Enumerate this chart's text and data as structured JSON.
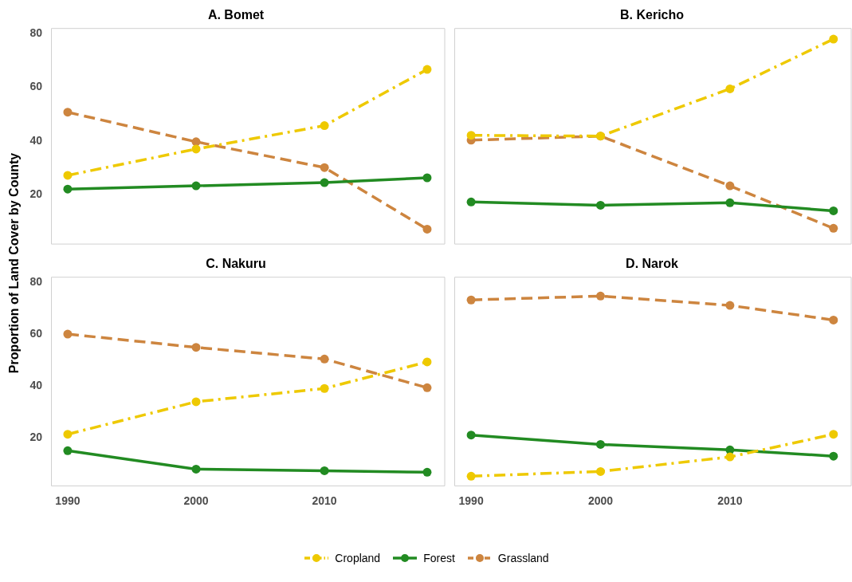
{
  "chart_data": [
    {
      "type": "line",
      "title": "A. Bomet",
      "ylabel": "Proportion of Land Cover by County",
      "x": [
        1990,
        2000,
        2010,
        2018
      ],
      "xlim": [
        1988.7,
        2019.4
      ],
      "xticks": [
        1990,
        2000,
        2010
      ],
      "ylim": [
        1.5,
        82
      ],
      "yticks": [
        20,
        40,
        60,
        80
      ],
      "tick_labels": "y",
      "grid": false,
      "legend": "bottom",
      "marker": "circle",
      "series": [
        {
          "name": "Cropland",
          "color": "#eec900",
          "line_style": "dashdot",
          "values": [
            27.2,
            37,
            45.7,
            66.6
          ]
        },
        {
          "name": "Forest",
          "color": "#228b22",
          "line_style": "solid",
          "values": [
            22.1,
            23.3,
            24.5,
            26.3
          ]
        },
        {
          "name": "Grassland",
          "color": "#cd853f",
          "line_style": "dashed",
          "values": [
            50.7,
            39.7,
            30.1,
            7.2
          ]
        }
      ]
    },
    {
      "type": "line",
      "title": "B. Kericho",
      "x": [
        1990,
        2000,
        2010,
        2018
      ],
      "xlim": [
        1988.7,
        2019.4
      ],
      "xticks": [
        1990,
        2000,
        2010
      ],
      "ylim": [
        1.5,
        82
      ],
      "yticks": [
        20,
        40,
        60,
        80
      ],
      "tick_labels": false,
      "grid": false,
      "marker": "circle",
      "series": [
        {
          "color": "#eec900",
          "line_style": "dashdot",
          "values": [
            42.1,
            41.8,
            59.4,
            77.9
          ]
        },
        {
          "color": "#228b22",
          "line_style": "solid",
          "values": [
            17.3,
            16.1,
            17,
            14
          ]
        },
        {
          "color": "#cd853f",
          "line_style": "dashed",
          "values": [
            40.3,
            41.8,
            23.3,
            7.5
          ]
        }
      ]
    },
    {
      "type": "line",
      "title": "C. Nakuru",
      "x": [
        1990,
        2000,
        2010,
        2018
      ],
      "xlim": [
        1988.7,
        2019.4
      ],
      "xticks": [
        1990,
        2000,
        2010
      ],
      "ylim": [
        1.5,
        82
      ],
      "yticks": [
        20,
        40,
        60,
        80
      ],
      "grid": false,
      "marker": "circle",
      "series": [
        {
          "color": "#eec900",
          "line_style": "dashdot",
          "values": [
            21.5,
            34,
            39.1,
            49.3
          ]
        },
        {
          "color": "#228b22",
          "line_style": "solid",
          "values": [
            15.2,
            8.1,
            7.5,
            6.9
          ]
        },
        {
          "color": "#cd853f",
          "line_style": "dashed",
          "values": [
            60,
            54.9,
            50.4,
            39.4
          ]
        }
      ]
    },
    {
      "type": "line",
      "title": "D. Narok",
      "x": [
        1990,
        2000,
        2010,
        2018
      ],
      "xlim": [
        1988.7,
        2019.4
      ],
      "xticks": [
        1990,
        2000,
        2010
      ],
      "ylim": [
        1.5,
        82
      ],
      "yticks": [
        20,
        40,
        60,
        80
      ],
      "tick_labels": "x",
      "grid": false,
      "marker": "circle",
      "series": [
        {
          "color": "#eec900",
          "line_style": "dashdot",
          "values": [
            5.4,
            7.2,
            12.8,
            21.5
          ]
        },
        {
          "color": "#228b22",
          "line_style": "solid",
          "values": [
            21.2,
            17.6,
            15.5,
            13.1
          ]
        },
        {
          "color": "#cd853f",
          "line_style": "dashed",
          "values": [
            73.1,
            74.6,
            71,
            65.4
          ]
        }
      ]
    }
  ]
}
